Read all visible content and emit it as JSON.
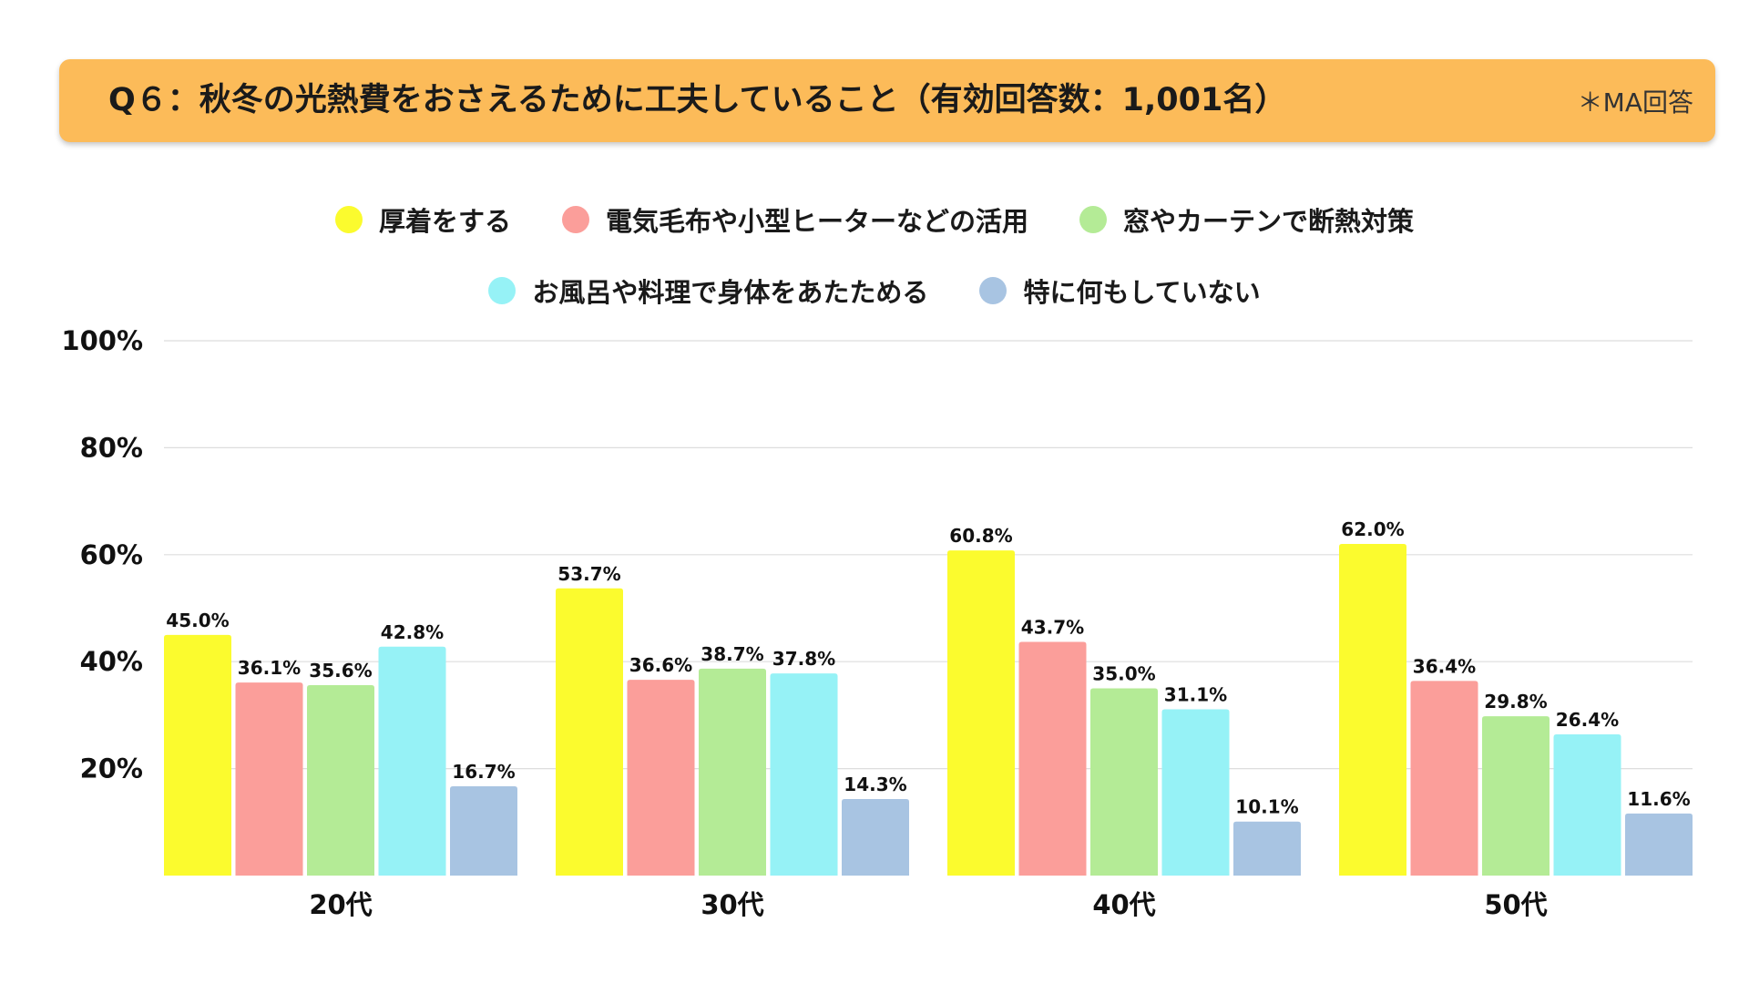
{
  "header": {
    "title": "Q６：秋冬の光熱費をおさえるために工夫していること（有効回答数：1,001名）",
    "note": "＊MA回答"
  },
  "colors": {
    "header_bg": "#fcbb59",
    "gridline": "#dddddd"
  },
  "chart_data": {
    "type": "bar",
    "title": "Q６：秋冬の光熱費をおさえるために工夫していること（有効回答数：1,001名）",
    "xlabel": "",
    "ylabel": "",
    "ylim": [
      0,
      100
    ],
    "yticks": [
      20,
      40,
      60,
      80,
      100
    ],
    "ytick_labels": [
      "20%",
      "40%",
      "60%",
      "80%",
      "100%"
    ],
    "grid": true,
    "legend_position": "top-center",
    "categories": [
      "20代",
      "30代",
      "40代",
      "50代"
    ],
    "series": [
      {
        "name": "厚着をする",
        "color": "#fbfb2e",
        "values": [
          45.0,
          53.7,
          60.8,
          62.0
        ],
        "labels": [
          "45.0%",
          "53.7%",
          "60.8%",
          "62.0%"
        ]
      },
      {
        "name": "電気毛布や小型ヒーターなどの活用",
        "color": "#fb9e9a",
        "values": [
          36.1,
          36.6,
          43.7,
          36.4
        ],
        "labels": [
          "36.1%",
          "36.6%",
          "43.7%",
          "36.4%"
        ]
      },
      {
        "name": "窓やカーテンで断熱対策",
        "color": "#b4eb96",
        "values": [
          35.6,
          38.7,
          35.0,
          29.8
        ],
        "labels": [
          "35.6%",
          "38.7%",
          "35.0%",
          "29.8%"
        ]
      },
      {
        "name": "お風呂や料理で身体をあたためる",
        "color": "#96f2f6",
        "values": [
          42.8,
          37.8,
          31.1,
          26.4
        ],
        "labels": [
          "42.8%",
          "37.8%",
          "31.1%",
          "26.4%"
        ]
      },
      {
        "name": "特に何もしていない",
        "color": "#a8c4e2",
        "values": [
          16.7,
          14.3,
          10.1,
          11.6
        ],
        "labels": [
          "16.7%",
          "14.3%",
          "10.1%",
          "11.6%"
        ]
      }
    ]
  }
}
